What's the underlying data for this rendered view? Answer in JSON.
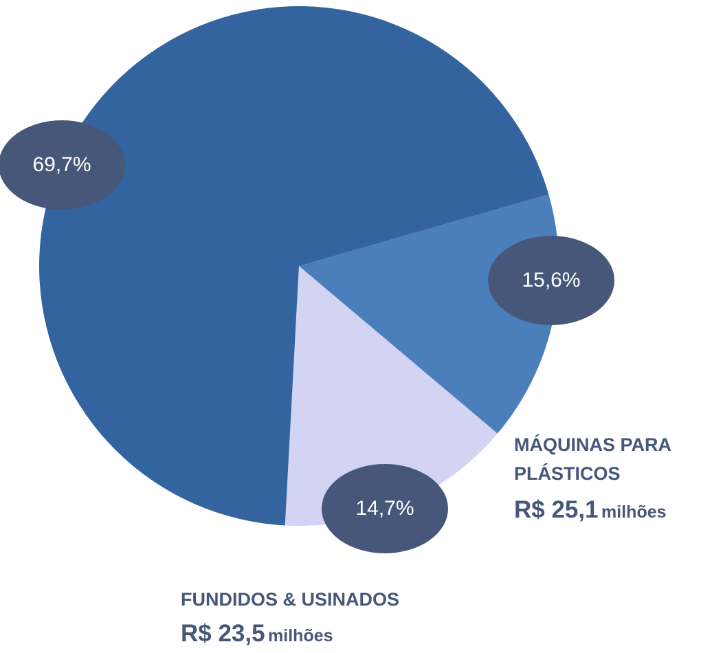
{
  "chart_data": {
    "type": "pie",
    "categories": [
      "MÁQUINAS PARA PLÁSTICOS",
      "FUNDIDOS & USINADOS",
      null
    ],
    "values": [
      15.6,
      14.7,
      69.7
    ],
    "value_labels": [
      "15,6%",
      "14,7%",
      "69,7%"
    ],
    "colors": [
      "#4b7fbc",
      "#d3d3f4",
      "#3464a0"
    ],
    "label_color": "#46577a",
    "annotations": [
      {
        "text": "R$ 25,1",
        "unit": "milhões"
      },
      {
        "text": "R$ 23,5",
        "unit": "milhões"
      }
    ]
  }
}
